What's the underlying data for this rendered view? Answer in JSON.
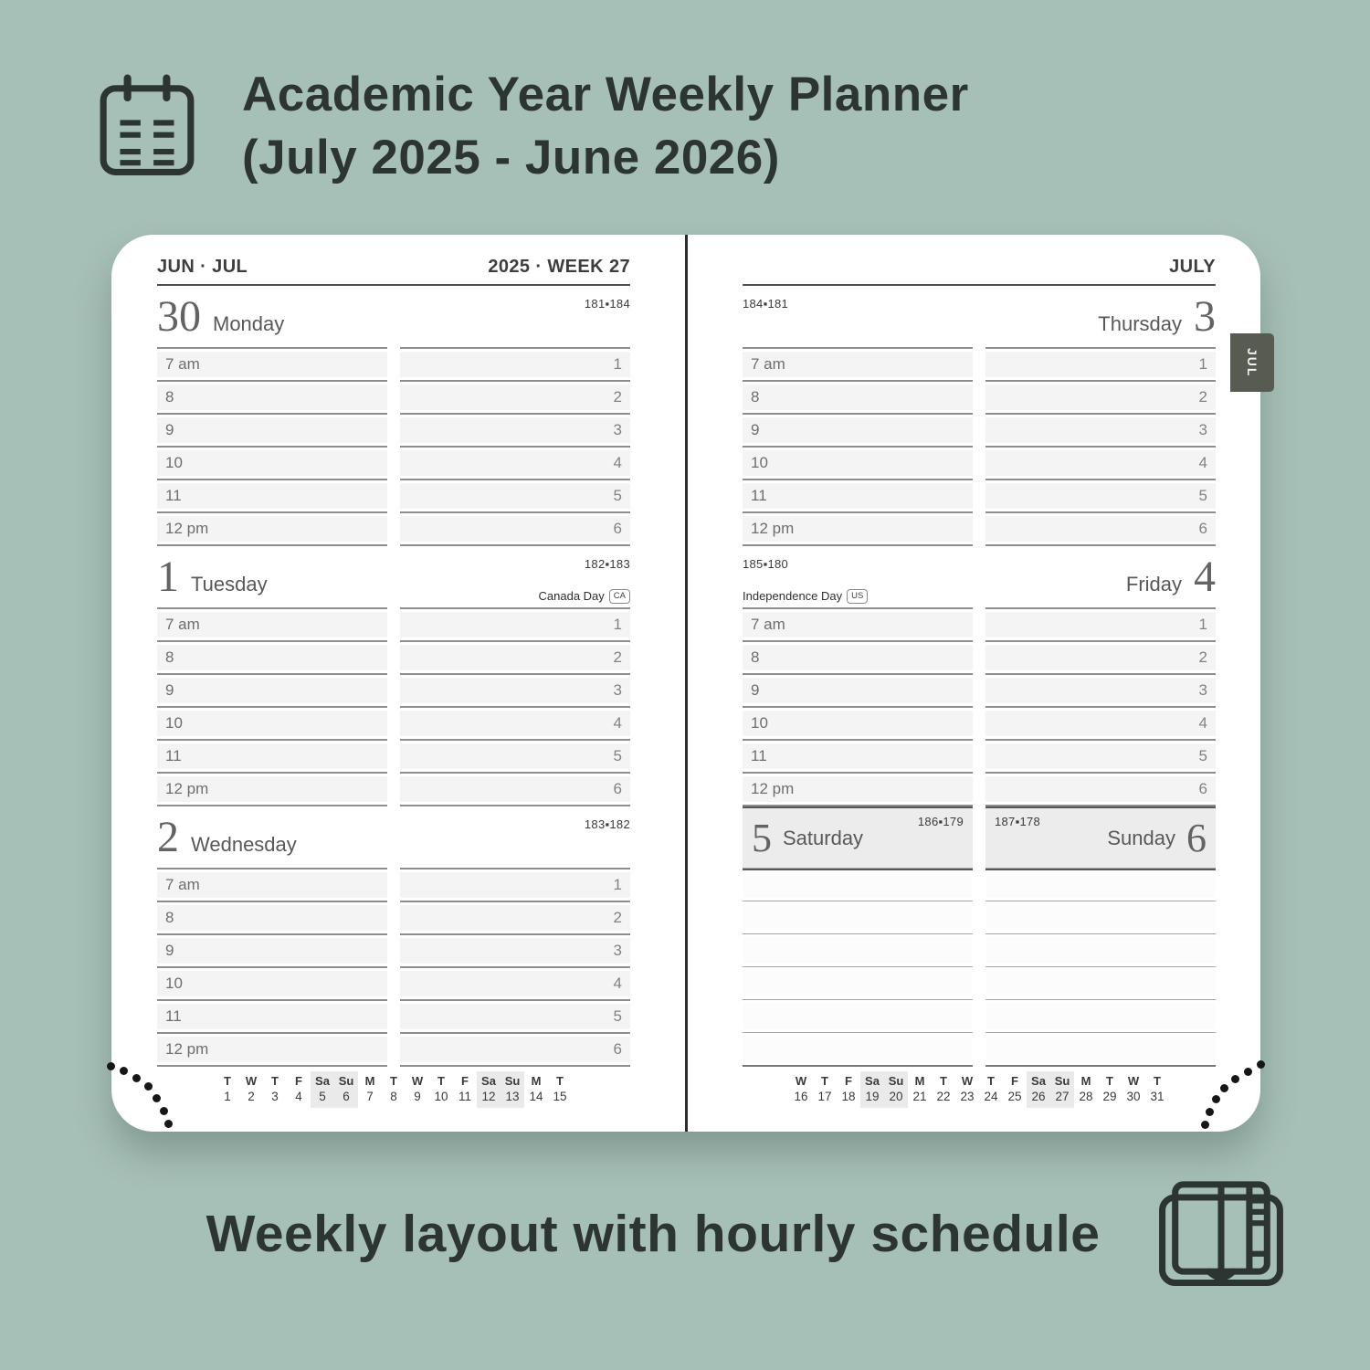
{
  "page_title": {
    "line1": "Academic Year Weekly Planner",
    "line2": "(July 2025 - June 2026)"
  },
  "caption": {
    "text": "Weekly layout with hourly schedule"
  },
  "colors": {
    "background": "#a7c0b7",
    "ink_dark": "#2c3531",
    "tab_gray": "#575b52",
    "hour_band": "#f4f4f4",
    "weekend_box": "#ececec",
    "weekend_highlight": "#eaeaea"
  },
  "planner": {
    "hours": [
      "7 am",
      "8",
      "9",
      "10",
      "11",
      "12 pm"
    ],
    "slots": [
      "1",
      "2",
      "3",
      "4",
      "5",
      "6"
    ],
    "left_page": {
      "month_label": "JUN · JUL",
      "week_label": "2025 · WEEK 27",
      "days": [
        {
          "number": "30",
          "name": "Monday",
          "pages": "181▪184"
        },
        {
          "number": "1",
          "name": "Tuesday",
          "pages": "182▪183",
          "holiday": {
            "label": "Canada Day",
            "badge": "CA"
          }
        },
        {
          "number": "2",
          "name": "Wednesday",
          "pages": "183▪182"
        }
      ],
      "mini_calendar": {
        "letters": [
          "T",
          "W",
          "T",
          "F",
          "Sa",
          "Su",
          "M",
          "T",
          "W",
          "T",
          "F",
          "Sa",
          "Su",
          "M",
          "T"
        ],
        "numbers": [
          "1",
          "2",
          "3",
          "4",
          "5",
          "6",
          "7",
          "8",
          "9",
          "10",
          "11",
          "12",
          "13",
          "14",
          "15"
        ],
        "weekend_indices": [
          4,
          5,
          11,
          12
        ]
      }
    },
    "right_page": {
      "month_label": "JULY",
      "tab_label": "JUL",
      "days": [
        {
          "number": "3",
          "name": "Thursday",
          "pages": "184▪181"
        },
        {
          "number": "4",
          "name": "Friday",
          "pages": "185▪180",
          "holiday": {
            "label": "Independence Day",
            "badge": "US"
          }
        }
      ],
      "weekend": {
        "saturday": {
          "number": "5",
          "name": "Saturday",
          "pages": "186▪179"
        },
        "sunday": {
          "number": "6",
          "name": "Sunday",
          "pages": "187▪178"
        }
      },
      "mini_calendar": {
        "letters": [
          "W",
          "T",
          "F",
          "Sa",
          "Su",
          "M",
          "T",
          "W",
          "T",
          "F",
          "Sa",
          "Su",
          "M",
          "T",
          "W",
          "T"
        ],
        "numbers": [
          "16",
          "17",
          "18",
          "19",
          "20",
          "21",
          "22",
          "23",
          "24",
          "25",
          "26",
          "27",
          "28",
          "29",
          "30",
          "31"
        ],
        "weekend_indices": [
          3,
          4,
          10,
          11
        ]
      }
    }
  }
}
